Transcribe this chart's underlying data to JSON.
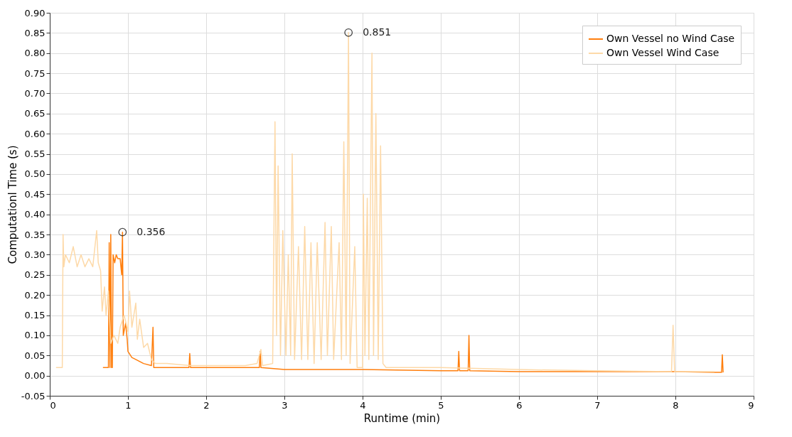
{
  "chart_data": {
    "type": "line",
    "xlabel": "Runtime (min)",
    "ylabel": "Computationl Time (s)",
    "xlim": [
      0,
      9
    ],
    "xticks": [
      0,
      1,
      2,
      3,
      4,
      5,
      6,
      7,
      8,
      9
    ],
    "ylim": [
      -0.05,
      0.9
    ],
    "yticks": [
      {
        "value": -0.05,
        "label": "-0.05"
      },
      {
        "value": 0,
        "label": "0.00"
      },
      {
        "value": 0.05,
        "label": "0.05"
      },
      {
        "value": 0.1,
        "label": "0.10"
      },
      {
        "value": 0.15,
        "label": "0.15"
      },
      {
        "value": 0.2,
        "label": "0.20"
      },
      {
        "value": 0.25,
        "label": "0.25"
      },
      {
        "value": 0.3,
        "label": "0.30"
      },
      {
        "value": 0.35,
        "label": "0.35"
      },
      {
        "value": 0.4,
        "label": "0.40"
      },
      {
        "value": 0.45,
        "label": "0.45"
      },
      {
        "value": 0.5,
        "label": "0.50"
      },
      {
        "value": 0.55,
        "label": "0.55"
      },
      {
        "value": 0.6,
        "label": "0.60"
      },
      {
        "value": 0.65,
        "label": "0.65"
      },
      {
        "value": 0.7,
        "label": "0.70"
      },
      {
        "value": 0.75,
        "label": "0.75"
      },
      {
        "value": 0.8,
        "label": "0.80"
      },
      {
        "value": 0.85,
        "label": "0.85"
      },
      {
        "value": 0.9,
        "label": "0.90"
      }
    ],
    "grid": true,
    "legend": "top right",
    "line_style": "solid",
    "annotations": [
      {
        "text": "0.356",
        "x": 0.93,
        "y": 0.356
      },
      {
        "text": "0.851",
        "x": 3.82,
        "y": 0.851
      }
    ],
    "series": [
      {
        "name": "Own Vessel no Wind Case",
        "color": "#ff7f0e",
        "x": [
          0.68,
          0.75,
          0.76,
          0.77,
          0.78,
          0.79,
          0.8,
          0.81,
          0.83,
          0.85,
          0.87,
          0.9,
          0.92,
          0.93,
          0.94,
          0.97,
          0.99,
          1.0,
          1.05,
          1.1,
          1.2,
          1.3,
          1.32,
          1.33,
          1.5,
          1.78,
          1.79,
          1.8,
          2.5,
          2.68,
          2.69,
          2.7,
          3,
          4,
          5,
          5.22,
          5.23,
          5.24,
          5.35,
          5.36,
          5.37,
          6,
          7,
          8,
          8.5,
          8.59,
          8.6,
          8.61
        ],
        "values": [
          0.02,
          0.02,
          0.33,
          0.02,
          0.35,
          0.02,
          0.02,
          0.3,
          0.28,
          0.3,
          0.29,
          0.29,
          0.25,
          0.356,
          0.1,
          0.13,
          0.09,
          0.06,
          0.045,
          0.04,
          0.03,
          0.025,
          0.12,
          0.02,
          0.02,
          0.02,
          0.055,
          0.02,
          0.02,
          0.02,
          0.06,
          0.02,
          0.015,
          0.015,
          0.012,
          0.012,
          0.06,
          0.012,
          0.012,
          0.1,
          0.012,
          0.01,
          0.01,
          0.01,
          0.008,
          0.008,
          0.052,
          0.008
        ]
      },
      {
        "name": "Own Vessel Wind Case",
        "color": "#fdd9a8",
        "x": [
          0.08,
          0.16,
          0.17,
          0.18,
          0.2,
          0.25,
          0.3,
          0.35,
          0.4,
          0.45,
          0.5,
          0.55,
          0.6,
          0.62,
          0.65,
          0.67,
          0.7,
          0.72,
          0.75,
          0.78,
          0.82,
          0.87,
          0.9,
          0.95,
          1.0,
          1.02,
          1.05,
          1.1,
          1.12,
          1.15,
          1.2,
          1.25,
          1.3,
          1.35,
          1.5,
          1.8,
          2.0,
          2.5,
          2.65,
          2.7,
          2.72,
          2.85,
          2.88,
          2.9,
          2.92,
          2.95,
          2.98,
          3.02,
          3.05,
          3.08,
          3.1,
          3.13,
          3.18,
          3.22,
          3.26,
          3.3,
          3.34,
          3.38,
          3.42,
          3.47,
          3.52,
          3.55,
          3.6,
          3.63,
          3.7,
          3.73,
          3.76,
          3.79,
          3.82,
          3.84,
          3.9,
          3.93,
          4.0,
          4.01,
          4.03,
          4.06,
          4.08,
          4.12,
          4.14,
          4.17,
          4.2,
          4.23,
          4.26,
          4.3,
          5,
          6,
          7,
          7.95,
          7.97,
          7.99,
          8.5
        ],
        "values": [
          0.02,
          0.02,
          0.35,
          0.27,
          0.3,
          0.28,
          0.32,
          0.27,
          0.3,
          0.27,
          0.29,
          0.27,
          0.36,
          0.28,
          0.26,
          0.16,
          0.22,
          0.15,
          0.21,
          0.08,
          0.1,
          0.08,
          0.12,
          0.15,
          0.11,
          0.21,
          0.12,
          0.18,
          0.09,
          0.14,
          0.07,
          0.08,
          0.04,
          0.03,
          0.03,
          0.025,
          0.025,
          0.025,
          0.03,
          0.065,
          0.025,
          0.03,
          0.63,
          0.1,
          0.52,
          0.05,
          0.36,
          0.05,
          0.3,
          0.05,
          0.55,
          0.04,
          0.32,
          0.04,
          0.37,
          0.04,
          0.33,
          0.03,
          0.33,
          0.04,
          0.38,
          0.05,
          0.37,
          0.04,
          0.33,
          0.04,
          0.58,
          0.05,
          0.851,
          0.03,
          0.32,
          0.02,
          0.02,
          0.45,
          0.05,
          0.44,
          0.04,
          0.8,
          0.05,
          0.65,
          0.04,
          0.57,
          0.03,
          0.02,
          0.02,
          0.015,
          0.012,
          0.01,
          0.125,
          0.01,
          0.01
        ]
      }
    ]
  }
}
